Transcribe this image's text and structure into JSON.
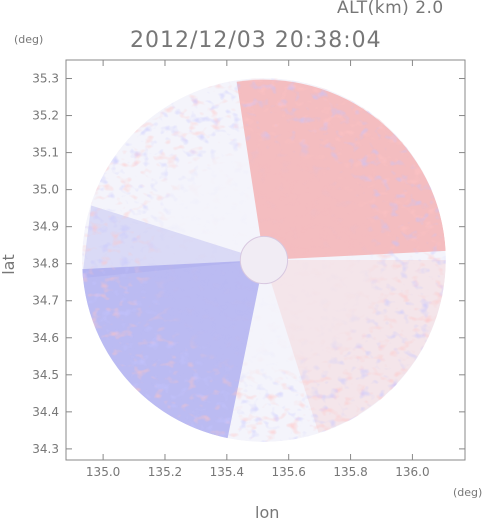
{
  "header": {
    "alt_label": "ALT(km) 2.0",
    "timestamp": "2012/12/03 20:38:04"
  },
  "axes": {
    "y_unit": "(deg)",
    "x_unit": "(deg)",
    "xlabel": "lon",
    "ylabel": "lat"
  },
  "colors": {
    "positive": "#f4a0a0",
    "negative": "#a8a8ef",
    "neutral": "#f4f4fb",
    "axis": "#888888"
  },
  "chart_data": {
    "type": "heatmap",
    "title": "2012/12/03 20:38:04",
    "xlabel": "lon",
    "ylabel": "lat",
    "xlim": [
      134.88,
      136.17
    ],
    "ylim": [
      34.27,
      35.35
    ],
    "x_ticks": [
      "135.0",
      "135.2",
      "135.4",
      "135.6",
      "135.8",
      "136.0"
    ],
    "y_ticks": [
      "34.3",
      "34.4",
      "34.5",
      "34.6",
      "34.7",
      "34.8",
      "34.9",
      "35.0",
      "35.1",
      "35.2",
      "35.3"
    ],
    "grid": false,
    "center": {
      "lon": 135.52,
      "lat": 34.81
    },
    "radius_deg": 0.6
  }
}
